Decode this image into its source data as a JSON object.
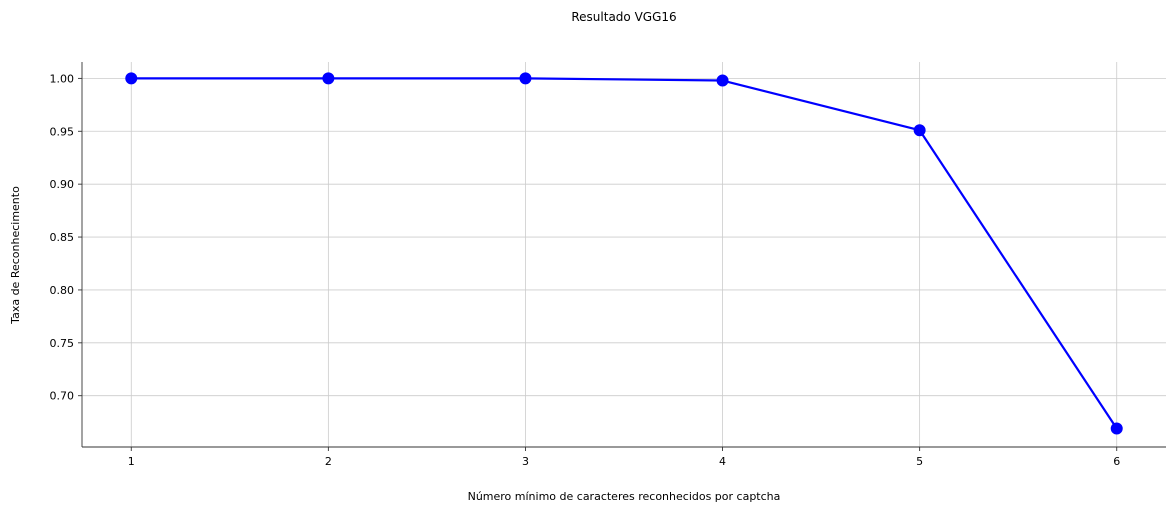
{
  "chart_data": {
    "type": "line",
    "title": "Resultado VGG16",
    "xlabel": "Número mínimo de caracteres reconhecidos por captcha",
    "ylabel": "Taxa de Reconhecimento",
    "x": [
      1,
      2,
      3,
      4,
      5,
      6
    ],
    "series": [
      {
        "values": [
          1.0,
          1.0,
          1.0,
          0.998,
          0.951,
          0.669
        ],
        "color": "#0000ff",
        "marker": "circle"
      }
    ],
    "xticks": [
      1,
      2,
      3,
      4,
      5,
      6
    ],
    "xtick_labels": [
      "1",
      "2",
      "3",
      "4",
      "5",
      "6"
    ],
    "yticks": [
      0.7,
      0.75,
      0.8,
      0.85,
      0.9,
      0.95,
      1.0
    ],
    "ytick_labels": [
      "0.70",
      "0.75",
      "0.80",
      "0.85",
      "0.90",
      "0.95",
      "1.00"
    ],
    "xlim": [
      0.75,
      6.25
    ],
    "ylim": [
      0.6515,
      1.0155
    ],
    "grid": true,
    "legend": "none"
  }
}
